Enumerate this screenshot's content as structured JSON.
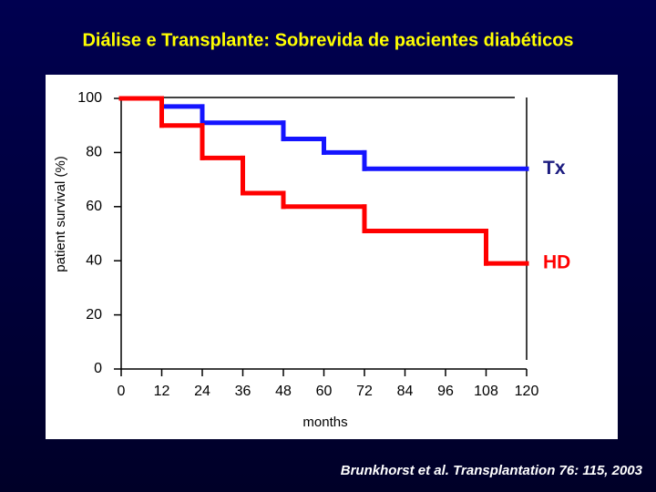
{
  "chart_data": {
    "type": "step",
    "title": "Diálise e Transplante: Sobrevida de pacientes diabéticos",
    "y_label": "patient survival (%)",
    "x_label": "months",
    "source": "Brunkhorst et al. Transplantation  76: 115, 2003",
    "xlim": [
      0,
      120
    ],
    "ylim": [
      0,
      100
    ],
    "xticks": [
      0,
      12,
      24,
      36,
      48,
      60,
      72,
      84,
      96,
      108,
      120
    ],
    "yticks": [
      0,
      20,
      40,
      60,
      80,
      100
    ],
    "series": [
      {
        "name": "Tx",
        "color": "#1414ff",
        "x": [
          0,
          12,
          24,
          48,
          60,
          72
        ],
        "values": [
          100,
          97,
          91,
          85,
          80,
          74
        ]
      },
      {
        "name": "HD",
        "color": "#ff0000",
        "x": [
          0,
          12,
          24,
          36,
          48,
          72,
          108
        ],
        "values": [
          100,
          90,
          78,
          65,
          60,
          51,
          39
        ]
      }
    ]
  }
}
